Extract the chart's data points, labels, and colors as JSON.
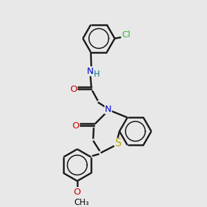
{
  "background_color": "#e8e8e8",
  "atom_colors": {
    "C": "#000000",
    "N": "#0000cc",
    "O": "#cc0000",
    "S": "#bbaa00",
    "Cl": "#33bb33",
    "H": "#007777"
  },
  "bond_color": "#1a1a1a",
  "bond_width": 1.8
}
